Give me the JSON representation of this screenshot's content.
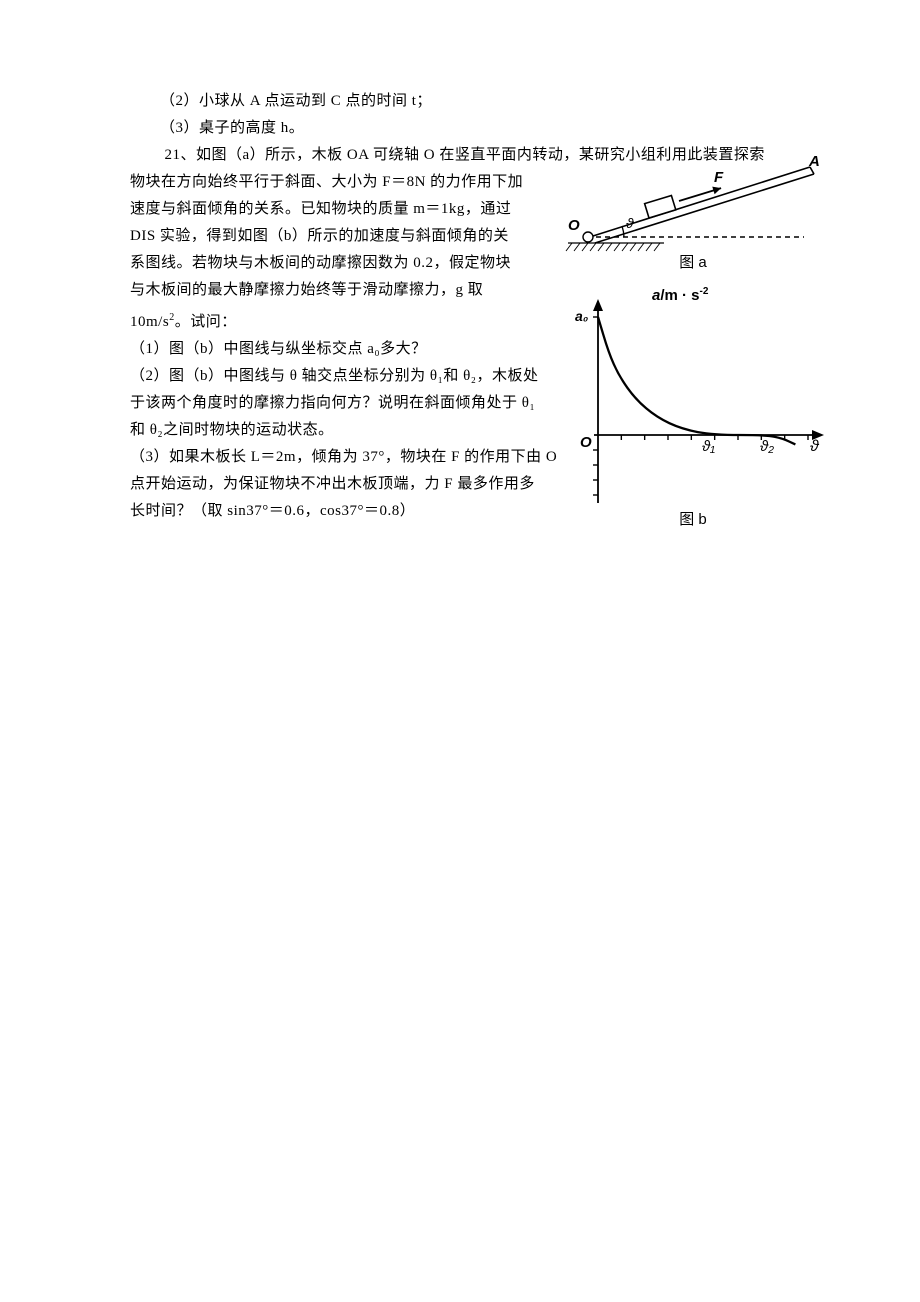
{
  "q20_part2": "（2）小球从 A 点运动到 C 点的时间 t；",
  "q20_part3": "（3）桌子的高度 h。",
  "q21_intro_line1": "21、如图（a）所示，木板 OA 可绕轴 O 在竖直平面内转动，某研究小组利用此装置探索",
  "q21_body": {
    "l1": "物块在方向始终平行于斜面、大小为 F＝8N 的力作用下加",
    "l2": "速度与斜面倾角的关系。已知物块的质量 m＝1kg，通过",
    "l3": "DIS 实验，得到如图（b）所示的加速度与斜面倾角的关",
    "l4": "系图线。若物块与木板间的动摩擦因数为 0.2，假定物块",
    "l5": "与木板间的最大静摩擦力始终等于滑动摩擦力，g 取",
    "l6_a": "10m/s",
    "l6_b": "。试问："
  },
  "q21_p1": "（1）图（b）中图线与纵坐标交点 a₀多大？",
  "q21_p2": {
    "l1": "（2）图（b）中图线与 θ 轴交点坐标分别为 θ₁和 θ₂，木板处",
    "l2": "于该两个角度时的摩擦力指向何方？说明在斜面倾角处于 θ₁",
    "l3": "和 θ₂之间时物块的运动状态。"
  },
  "q21_p3": {
    "l1": "（3）如果木板长 L＝2m，倾角为 37°，物块在 F 的作用下由 O",
    "l2": "点开始运动，为保证物块不冲出木板顶端，力 F 最多作用多",
    "l3": "长时间？（取 sin37°＝0.6，cos37°＝0.8）"
  },
  "figA": {
    "caption": "图 a",
    "labels": {
      "F": "F",
      "A": "A",
      "O": "O",
      "theta": "ϑ"
    },
    "colors": {
      "stroke": "#000000",
      "hatch": "#000000"
    }
  },
  "figB": {
    "caption": "图 b",
    "ylabel_a": "a",
    "ylabel_unit": "/m · s",
    "ylabel_exp": "-2",
    "a0": "a₀",
    "origin": "O",
    "theta1": "ϑ₁",
    "theta2": "ϑ₂",
    "xlabel": "ϑ",
    "curve": {
      "type": "line",
      "points": [
        [
          0,
          1.0
        ],
        [
          0.05,
          0.7
        ],
        [
          0.1,
          0.5
        ],
        [
          0.18,
          0.3
        ],
        [
          0.28,
          0.15
        ],
        [
          0.4,
          0.05
        ],
        [
          0.55,
          0.0
        ],
        [
          0.8,
          0.0
        ],
        [
          0.88,
          -0.03
        ],
        [
          0.94,
          -0.08
        ]
      ],
      "stroke": "#000000",
      "stroke_width": 2.3
    },
    "axis": {
      "color": "#000000",
      "tick_len": 5,
      "x_ticks": 9,
      "y_ticks_up": 1,
      "y_ticks_down": 4
    },
    "xlim": [
      0,
      1
    ],
    "ylim": [
      -0.3,
      1.1
    ]
  }
}
